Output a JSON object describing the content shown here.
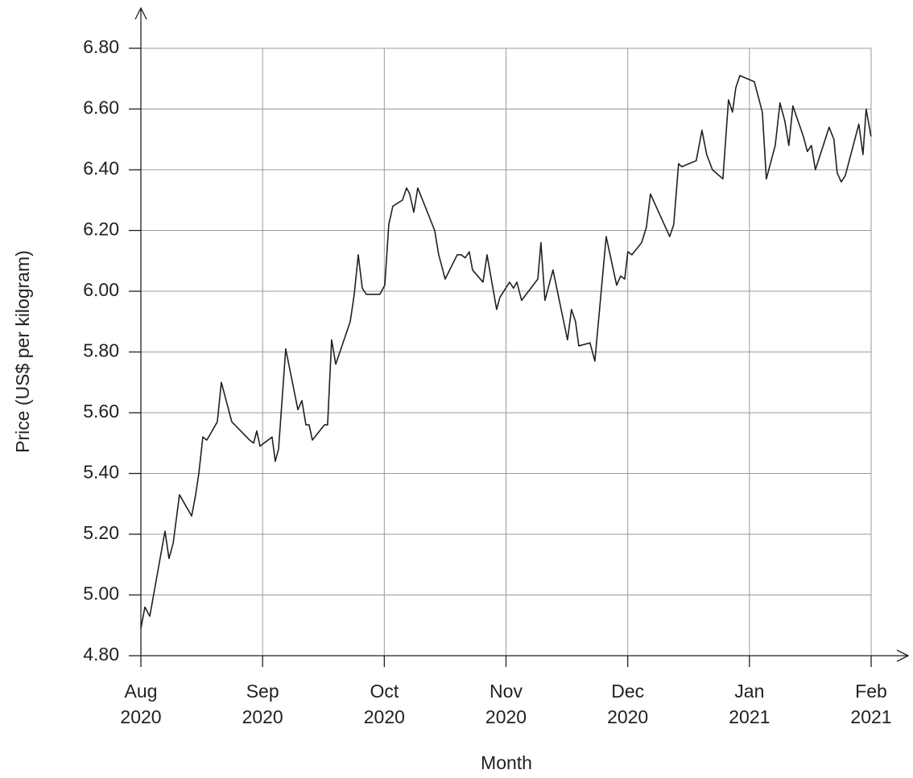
{
  "chart_data": {
    "type": "line",
    "x_label": "Month",
    "y_label": "Price (US$ per kilogram)",
    "grid": true,
    "xlim": [
      0,
      6
    ],
    "xticks": [
      {
        "value": 0,
        "label": "Aug\n2020"
      },
      {
        "value": 1,
        "label": "Sep\n2020"
      },
      {
        "value": 2,
        "label": "Oct\n2020"
      },
      {
        "value": 3,
        "label": "Nov\n2020"
      },
      {
        "value": 4,
        "label": "Dec\n2020"
      },
      {
        "value": 5,
        "label": "Jan\n2021"
      },
      {
        "value": 6,
        "label": "Feb\n2021"
      }
    ],
    "ylim": [
      4.8,
      6.8
    ],
    "yticks": [
      {
        "value": 4.8,
        "label": "4.80"
      },
      {
        "value": 5.0,
        "label": "5.00"
      },
      {
        "value": 5.2,
        "label": "5.20"
      },
      {
        "value": 5.4,
        "label": "5.40"
      },
      {
        "value": 5.6,
        "label": "5.60"
      },
      {
        "value": 5.8,
        "label": "5.80"
      },
      {
        "value": 6.0,
        "label": "6.00"
      },
      {
        "value": 6.2,
        "label": "6.20"
      },
      {
        "value": 6.4,
        "label": "6.40"
      },
      {
        "value": 6.6,
        "label": "6.60"
      },
      {
        "value": 6.8,
        "label": "6.80"
      }
    ],
    "color": "#231f20",
    "x": [
      0,
      0.033,
      0.073,
      0.198,
      0.231,
      0.265,
      0.317,
      0.417,
      0.45,
      0.476,
      0.509,
      0.542,
      0.628,
      0.661,
      0.747,
      0.893,
      0.926,
      0.952,
      0.979,
      1.078,
      1.104,
      1.131,
      1.19,
      1.29,
      1.323,
      1.356,
      1.382,
      1.409,
      1.508,
      1.534,
      1.567,
      1.601,
      1.72,
      1.753,
      1.786,
      1.819,
      1.852,
      1.964,
      2.004,
      2.037,
      2.07,
      2.149,
      2.183,
      2.209,
      2.242,
      2.275,
      2.414,
      2.447,
      2.474,
      2.5,
      2.599,
      2.632,
      2.665,
      2.698,
      2.725,
      2.811,
      2.844,
      2.923,
      2.95,
      3.029,
      3.062,
      3.089,
      3.128,
      3.261,
      3.287,
      3.32,
      3.386,
      3.505,
      3.538,
      3.571,
      3.598,
      3.69,
      3.73,
      3.823,
      3.909,
      3.942,
      3.975,
      4.001,
      4.034,
      4.114,
      4.153,
      4.187,
      4.345,
      4.378,
      4.418,
      4.444,
      4.563,
      4.61,
      4.649,
      4.696,
      4.782,
      4.828,
      4.861,
      4.888,
      4.921,
      5.04,
      5.106,
      5.139,
      5.212,
      5.251,
      5.291,
      5.324,
      5.357,
      5.443,
      5.476,
      5.509,
      5.542,
      5.655,
      5.694,
      5.721,
      5.754,
      5.787,
      5.899,
      5.933,
      5.959,
      5.999
    ],
    "values": [
      4.89,
      4.96,
      4.93,
      5.21,
      5.12,
      5.17,
      5.33,
      5.26,
      5.33,
      5.4,
      5.52,
      5.51,
      5.57,
      5.7,
      5.57,
      5.51,
      5.5,
      5.54,
      5.49,
      5.52,
      5.44,
      5.48,
      5.81,
      5.61,
      5.64,
      5.56,
      5.56,
      5.51,
      5.56,
      5.56,
      5.84,
      5.76,
      5.9,
      5.99,
      6.12,
      6.01,
      5.99,
      5.99,
      6.02,
      6.22,
      6.28,
      6.3,
      6.34,
      6.32,
      6.26,
      6.34,
      6.2,
      6.12,
      6.08,
      6.04,
      6.12,
      6.12,
      6.11,
      6.13,
      6.07,
      6.03,
      6.12,
      5.94,
      5.98,
      6.03,
      6.01,
      6.03,
      5.97,
      6.04,
      6.16,
      5.97,
      6.07,
      5.84,
      5.94,
      5.9,
      5.82,
      5.83,
      5.77,
      6.18,
      6.02,
      6.05,
      6.04,
      6.13,
      6.12,
      6.16,
      6.21,
      6.32,
      6.18,
      6.22,
      6.42,
      6.41,
      6.43,
      6.53,
      6.45,
      6.4,
      6.37,
      6.63,
      6.59,
      6.67,
      6.71,
      6.69,
      6.59,
      6.37,
      6.48,
      6.62,
      6.56,
      6.48,
      6.61,
      6.51,
      6.46,
      6.48,
      6.4,
      6.54,
      6.5,
      6.39,
      6.36,
      6.38,
      6.55,
      6.45,
      6.6,
      6.51
    ]
  }
}
